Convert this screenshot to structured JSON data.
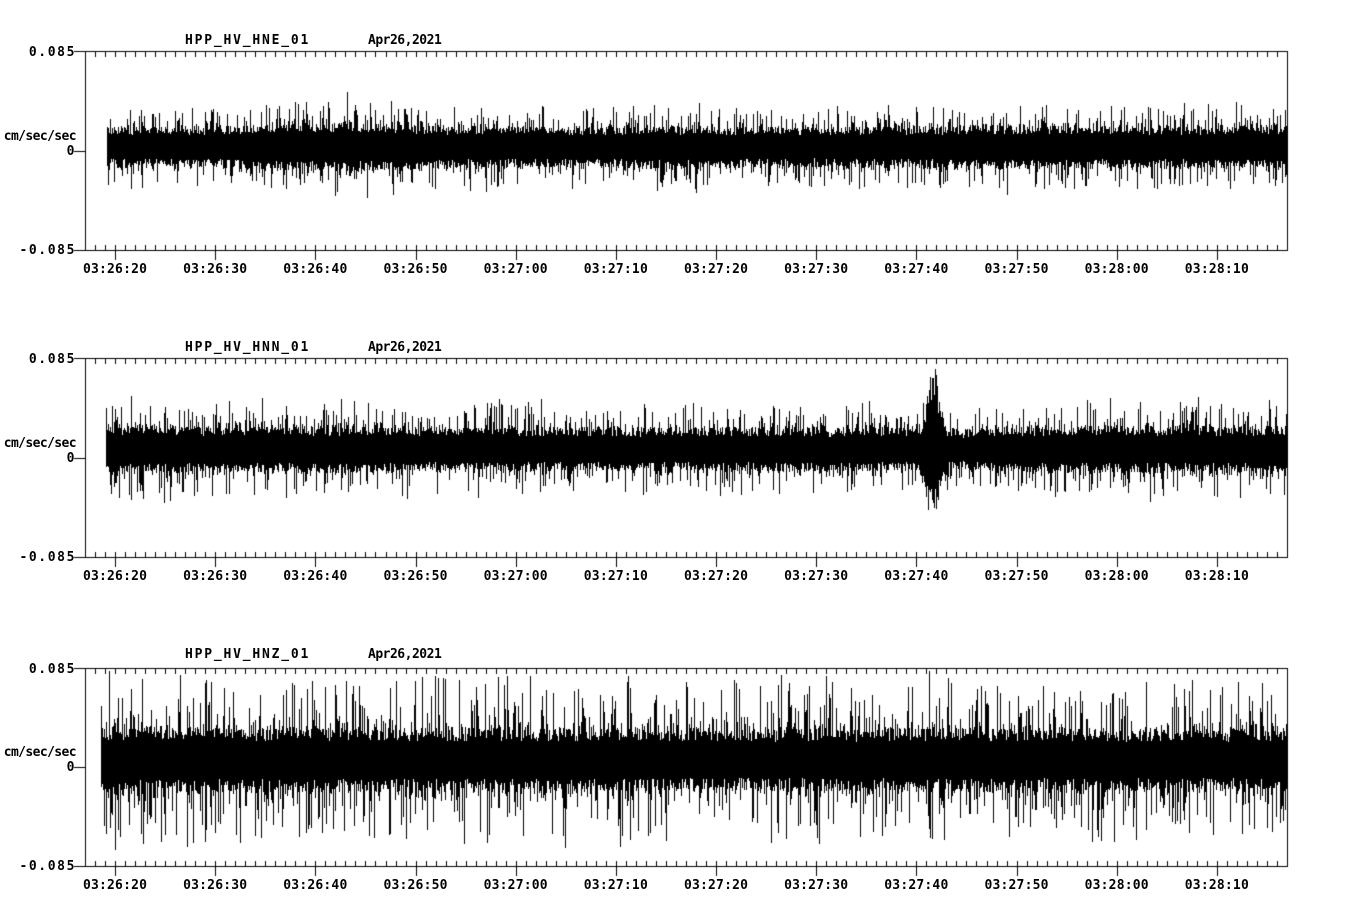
{
  "window": {
    "background": "#ffffff",
    "foreground": "#000000"
  },
  "x_axis": {
    "start_time": "03:26:17",
    "end_time": "03:28:17",
    "duration_sec": 120,
    "minor_tick_interval_sec": 1,
    "major_tick_interval_sec": 10,
    "tick_labels": [
      {
        "offset_sec": 3,
        "label": "03:26:20"
      },
      {
        "offset_sec": 13,
        "label": "03:26:30"
      },
      {
        "offset_sec": 23,
        "label": "03:26:40"
      },
      {
        "offset_sec": 33,
        "label": "03:26:50"
      },
      {
        "offset_sec": 43,
        "label": "03:27:00"
      },
      {
        "offset_sec": 53,
        "label": "03:27:10"
      },
      {
        "offset_sec": 63,
        "label": "03:27:20"
      },
      {
        "offset_sec": 73,
        "label": "03:27:30"
      },
      {
        "offset_sec": 83,
        "label": "03:27:40"
      },
      {
        "offset_sec": 93,
        "label": "03:27:50"
      },
      {
        "offset_sec": 103,
        "label": "03:28:00"
      },
      {
        "offset_sec": 113,
        "label": "03:28:10"
      }
    ]
  },
  "chart_data": [
    {
      "type": "line",
      "station_title": "HPP_HV_HNE_01",
      "date_label": "Apr26,2021",
      "ylabel": "cm/sec/sec",
      "ylim": [
        -0.085,
        0.085
      ],
      "y_axis": {
        "top_label": "0.085",
        "zero_label": "0",
        "bottom_label": "-0.085"
      },
      "x_range": {
        "start": "03:26:17",
        "end": "03:28:17"
      },
      "signal_description": "continuous high-frequency ground-acceleration noise, roughly stationary, slight bulge near 03:26:40",
      "dc_offset": 0.003,
      "core_amplitude": 0.014,
      "spike_amplitude": 0.022,
      "peak_amplitude": 0.043,
      "data_start_offset_sec": 2.2,
      "seed": 101,
      "envelope": [
        [
          0,
          1.0
        ],
        [
          0.08,
          0.95
        ],
        [
          0.17,
          1.12
        ],
        [
          0.22,
          1.22
        ],
        [
          0.28,
          1.05
        ],
        [
          0.4,
          0.95
        ],
        [
          0.5,
          1.02
        ],
        [
          0.62,
          0.96
        ],
        [
          0.75,
          1.05
        ],
        [
          0.88,
          1.0
        ],
        [
          1,
          1.06
        ]
      ],
      "events": []
    },
    {
      "type": "line",
      "station_title": "HPP_HV_HNN_01",
      "date_label": "Apr26,2021",
      "ylabel": "cm/sec/sec",
      "ylim": [
        -0.085,
        0.085
      ],
      "y_axis": {
        "top_label": "0.085",
        "zero_label": "0",
        "bottom_label": "-0.085"
      },
      "x_range": {
        "start": "03:26:17",
        "end": "03:28:17"
      },
      "signal_description": "continuous high-frequency ground-acceleration noise with a large transient spike near 03:27:42",
      "dc_offset": 0.007,
      "core_amplitude": 0.016,
      "spike_amplitude": 0.026,
      "peak_amplitude": 0.068,
      "data_start_offset_sec": 2.1,
      "seed": 202,
      "envelope": [
        [
          0,
          1.05
        ],
        [
          0.1,
          1.0
        ],
        [
          0.3,
          0.97
        ],
        [
          0.5,
          0.92
        ],
        [
          0.6,
          0.95
        ],
        [
          0.68,
          0.9
        ],
        [
          0.7,
          0.75
        ],
        [
          0.715,
          0.8
        ],
        [
          0.73,
          0.85
        ],
        [
          0.78,
          0.95
        ],
        [
          0.85,
          1.0
        ],
        [
          1,
          0.97
        ]
      ],
      "events": [
        {
          "offset_sec": 84.6,
          "peak_amplitude": 0.055,
          "half_width_sec": 0.9,
          "label": "transient spike near 03:27:42"
        }
      ]
    },
    {
      "type": "line",
      "station_title": "HPP_HV_HNZ_01",
      "date_label": "Apr26,2021",
      "ylabel": "cm/sec/sec",
      "ylim": [
        -0.085,
        0.085
      ],
      "y_axis": {
        "top_label": "0.085",
        "zero_label": "0",
        "bottom_label": "-0.085"
      },
      "x_range": {
        "start": "03:26:17",
        "end": "03:28:17"
      },
      "signal_description": "continuous high-frequency ground-acceleration noise, higher amplitude than horizontal components, frequent tall spikes",
      "dc_offset": 0.006,
      "core_amplitude": 0.022,
      "spike_amplitude": 0.05,
      "peak_amplitude": 0.077,
      "data_start_offset_sec": 1.6,
      "seed": 303,
      "envelope": [
        [
          0,
          1.05
        ],
        [
          0.15,
          1.0
        ],
        [
          0.35,
          1.0
        ],
        [
          0.55,
          0.95
        ],
        [
          0.75,
          1.0
        ],
        [
          1,
          0.95
        ]
      ],
      "events": []
    }
  ]
}
